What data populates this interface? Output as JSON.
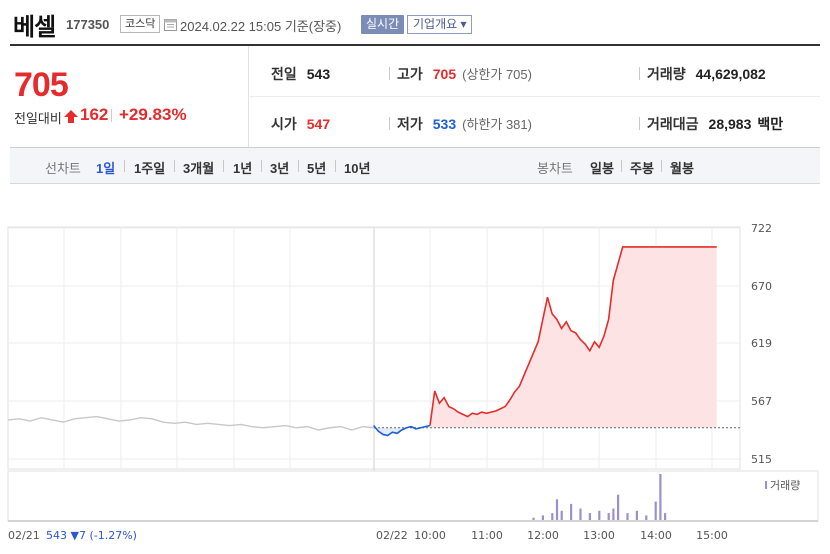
{
  "header": {
    "name": "베셀",
    "code": "177350",
    "market": "코스닥",
    "timestamp": "2024.02.22 15:05 기준(장중)",
    "live_button": "실시간",
    "info_button": "기업개요 ▾"
  },
  "summary": {
    "price": "705",
    "change_label": "전일대비",
    "change": "162",
    "change_pct": "+29.83%",
    "prev_close_label": "전일",
    "prev_close": "543",
    "high_label": "고가",
    "high": "705",
    "upper_limit": "(상한가 705)",
    "volume_label": "거래량",
    "volume": "44,629,082",
    "open_label": "시가",
    "open": "547",
    "low_label": "저가",
    "low": "533",
    "lower_limit": "(하한가 381)",
    "amount_label": "거래대금",
    "amount": "28,983",
    "amount_unit": "백만"
  },
  "toolbar": {
    "line_label": "선차트",
    "periods": [
      "1일",
      "1주일",
      "3개월",
      "1년",
      "3년",
      "5년",
      "10년"
    ],
    "active_period": "1일",
    "candle_label": "봉차트",
    "candles": [
      "일봉",
      "주봉",
      "월봉"
    ]
  },
  "colors": {
    "up": "#e52b2b",
    "down": "#1d5fd4",
    "prev_day": "#c8c8c8",
    "volume": "#9b8fd0"
  },
  "chart_data": {
    "type": "line",
    "y_ticks": [
      "722",
      "670",
      "619",
      "567",
      "515"
    ],
    "ylim": [
      515,
      722
    ],
    "x_ticks": [
      "02/21",
      "02/22",
      "10:00",
      "11:00",
      "12:00",
      "13:00",
      "14:00",
      "15:00"
    ],
    "prev_day_footer": "02/21  543 ▼7 (-1.27%)",
    "baseline": 543,
    "volume_legend": "거래량",
    "prev_day_series": {
      "date": "02/21",
      "values": [
        550,
        551,
        549,
        552,
        550,
        548,
        551,
        552,
        553,
        551,
        549,
        550,
        552,
        551,
        548,
        547,
        548,
        546,
        547,
        546,
        545,
        546,
        544,
        543,
        544,
        545,
        543,
        544,
        541,
        543,
        544,
        541,
        544,
        543
      ]
    },
    "today_series": {
      "date": "02/22",
      "times": [
        "09:00",
        "09:05",
        "09:10",
        "09:15",
        "09:20",
        "09:25",
        "09:30",
        "09:35",
        "09:40",
        "09:45",
        "09:50",
        "09:55",
        "10:00",
        "10:05",
        "10:10",
        "10:15",
        "10:20",
        "10:25",
        "10:30",
        "10:35",
        "10:40",
        "10:45",
        "10:50",
        "10:55",
        "11:00",
        "11:05",
        "11:10",
        "11:15",
        "11:20",
        "11:25",
        "11:30",
        "11:35",
        "11:40",
        "11:45",
        "11:50",
        "11:55",
        "12:00",
        "12:05",
        "12:10",
        "12:15",
        "12:20",
        "12:25",
        "12:30",
        "12:35",
        "12:40",
        "12:45",
        "12:50",
        "12:55",
        "13:00",
        "13:05",
        "13:10",
        "13:15",
        "13:20",
        "13:25",
        "13:30",
        "13:35",
        "13:40",
        "13:45",
        "13:50",
        "13:55",
        "14:00",
        "14:05",
        "14:10",
        "14:15",
        "14:20",
        "14:25",
        "14:30",
        "14:35",
        "14:40",
        "14:45",
        "14:50",
        "14:55",
        "15:00",
        "15:05"
      ],
      "values": [
        545,
        540,
        537,
        536,
        539,
        538,
        541,
        543,
        544,
        542,
        543,
        544,
        545,
        576,
        565,
        570,
        562,
        560,
        557,
        555,
        553,
        556,
        555,
        557,
        556,
        557,
        558,
        560,
        562,
        568,
        575,
        580,
        590,
        600,
        610,
        620,
        640,
        660,
        645,
        640,
        632,
        638,
        630,
        628,
        622,
        618,
        612,
        620,
        615,
        625,
        640,
        675,
        690,
        705,
        705,
        705,
        705,
        705,
        705,
        705,
        705,
        705,
        705,
        705,
        705,
        705,
        705,
        705,
        705,
        705,
        705,
        705,
        705,
        705
      ]
    },
    "volume_series": {
      "times": [
        "11:50",
        "12:00",
        "12:10",
        "12:15",
        "12:20",
        "12:30",
        "12:40",
        "12:50",
        "13:00",
        "13:10",
        "13:15",
        "13:20",
        "13:30",
        "13:40",
        "13:50",
        "14:00",
        "14:05",
        "14:10"
      ],
      "values": [
        1,
        2,
        3,
        9,
        4,
        7,
        5,
        3,
        4,
        3,
        5,
        11,
        3,
        4,
        2,
        8,
        20,
        3
      ]
    }
  }
}
